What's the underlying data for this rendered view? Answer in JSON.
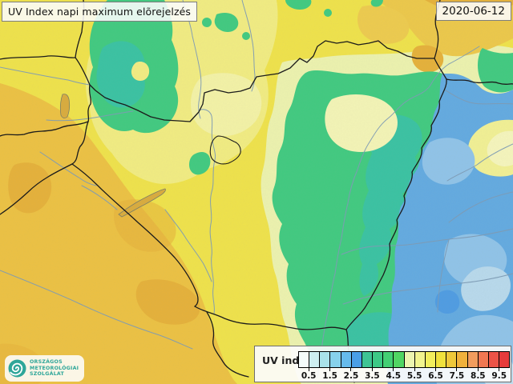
{
  "header": {
    "title": "UV Index napi maximum elõrejelzés",
    "date": "2020-06-12"
  },
  "logo": {
    "line1": "ORSZÁGOS",
    "line2": "METEOROLÓGIAI",
    "line3": "SZOLGÁLAT",
    "color": "#2ea699"
  },
  "legend": {
    "label": "UV index",
    "scale_min": 0,
    "scale_max": 10,
    "scale_step": 0.5,
    "tick_labels": [
      "0.5",
      "1.5",
      "2.5",
      "3.5",
      "4.5",
      "5.5",
      "6.5",
      "7.5",
      "8.5",
      "9.5"
    ],
    "colors": [
      "#f4fbfb",
      "#cdeef0",
      "#a9e2ea",
      "#87d2ec",
      "#66bbec",
      "#4a9fe6",
      "#3ec494",
      "#3dc986",
      "#43cf74",
      "#50d563",
      "#edf5b0",
      "#f2f48e",
      "#f2ee5c",
      "#f0e13c",
      "#efc83a",
      "#f0b13c",
      "#f29d5e",
      "#f07852",
      "#ec5347",
      "#e63b3b"
    ]
  },
  "map": {
    "region_colors": {
      "yellow_base": "#efe24b",
      "pale_yellow": "#f1ec82",
      "cream": "#f3f2a6",
      "pale_green_halo": "#ecf2ae",
      "cream_pocket": "#f3f4b6",
      "orange": "#ecc143",
      "orange_wash": "#ecc84a",
      "orange_tinge": "#edcb4e",
      "dark_orange": "#e5b13a",
      "green": "#41ca80",
      "teal": "#3ac2a2",
      "blue": "#63aae0",
      "light_blue": "#90c3e8",
      "pale_blue": "#b8d9ec",
      "palest_blue": "#c2def0",
      "dark_blue_spot": "#4f9ce2",
      "yellow_pocket": "#f1f094",
      "yellow_pocket_core": "#f5f5bc",
      "lake": "#d7ab40",
      "lake_outline": "#7d7f66",
      "river": "#7e9bb4",
      "border": "#1b1b1b"
    }
  }
}
